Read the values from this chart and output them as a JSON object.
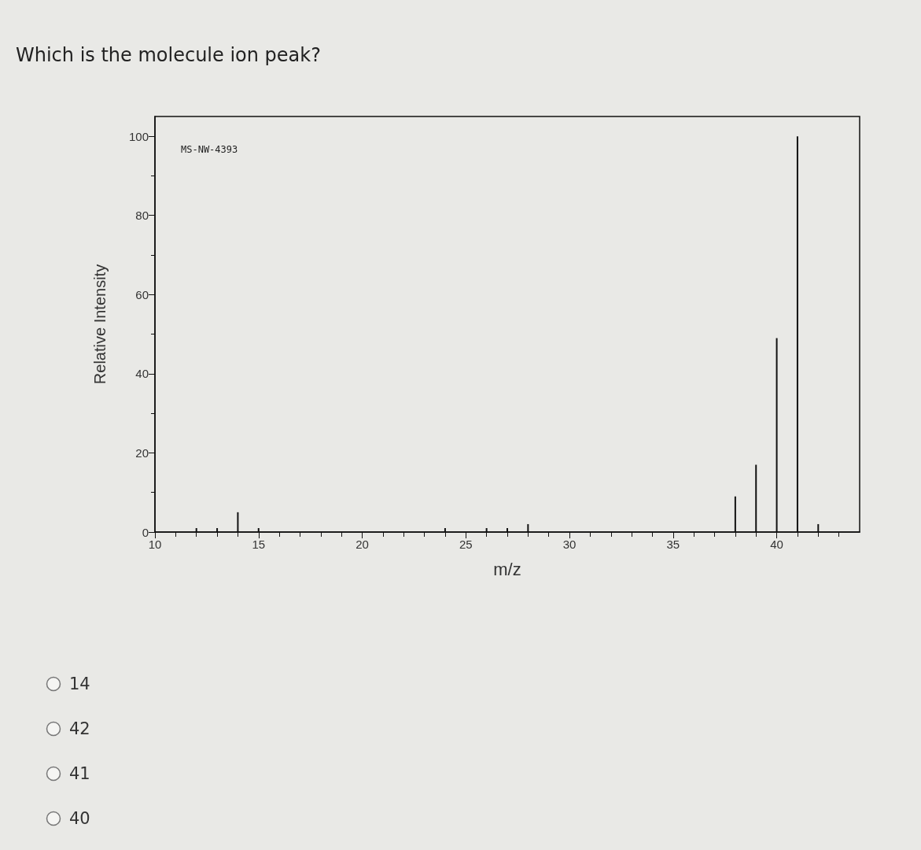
{
  "chart_data": {
    "type": "bar",
    "title": "Which is the molecule ion peak?",
    "xlabel": "m/z",
    "ylabel": "Relative Intensity",
    "x": [
      12,
      13,
      14,
      15,
      24,
      26,
      27,
      28,
      38,
      39,
      40,
      41,
      42
    ],
    "values": [
      1,
      1,
      5,
      1,
      1,
      1,
      1,
      2,
      9,
      17,
      49,
      100,
      2
    ],
    "color": "#111111",
    "xlim": [
      10,
      44
    ],
    "xticks": [
      10,
      15,
      20,
      25,
      30,
      35,
      40
    ],
    "ylim": [
      0,
      105
    ],
    "yticks": [
      0,
      20,
      40,
      60,
      80,
      100
    ],
    "annotations": [
      "MS-NW-4393",
      "14",
      "42",
      "41",
      "40"
    ]
  }
}
